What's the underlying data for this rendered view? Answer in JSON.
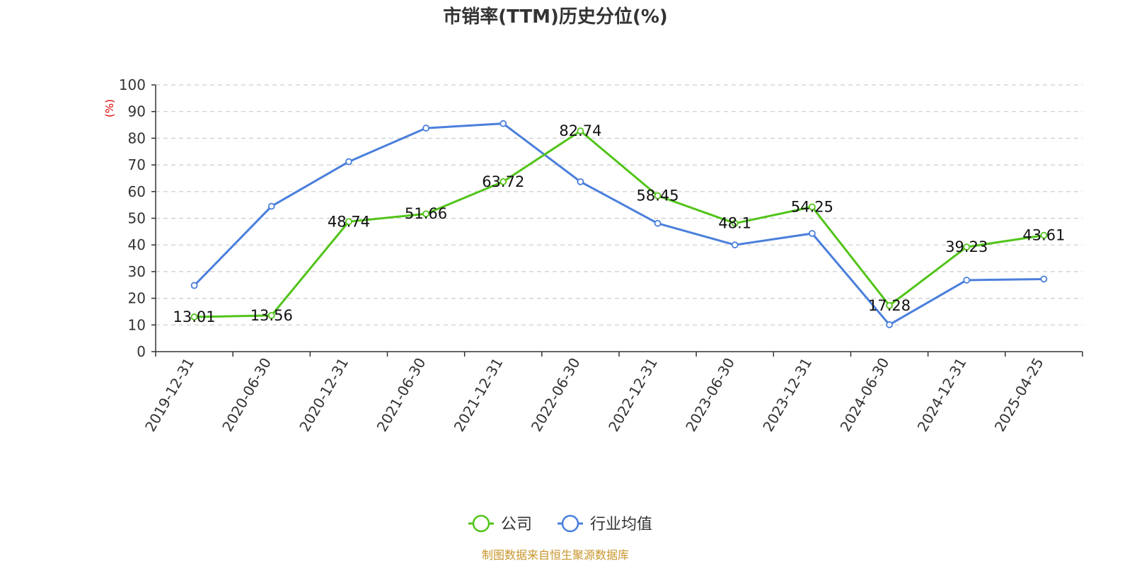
{
  "chart_data": {
    "type": "line",
    "title": "市销率(TTM)历史分位(%)",
    "ylabel": "(%)",
    "xlabel": "",
    "ylim": [
      0,
      100
    ],
    "yticks": [
      0,
      10,
      20,
      30,
      40,
      50,
      60,
      70,
      80,
      90,
      100
    ],
    "categories": [
      "2019-12-31",
      "2020-06-30",
      "2020-12-31",
      "2021-06-30",
      "2021-12-31",
      "2022-06-30",
      "2022-12-31",
      "2023-06-30",
      "2023-12-31",
      "2024-06-30",
      "2024-12-31",
      "2025-04-25"
    ],
    "series": [
      {
        "name": "公司",
        "color": "#52c41a",
        "values": [
          13.01,
          13.56,
          48.74,
          51.66,
          63.72,
          82.74,
          58.45,
          48.1,
          54.25,
          17.28,
          39.23,
          43.61
        ],
        "labels": [
          "13.01",
          "13.56",
          "48.74",
          "51.66",
          "63.72",
          "82.74",
          "58.45",
          "48.1",
          "54.25",
          "17.28",
          "39.23",
          "43.61"
        ]
      },
      {
        "name": "行业均值",
        "color": "#4a7fdc",
        "values": [
          24.8,
          54.5,
          71.2,
          83.8,
          85.5,
          63.7,
          48.1,
          40.0,
          44.3,
          10.1,
          26.8,
          27.2
        ]
      }
    ],
    "grid": true,
    "legend_position": "bottom-center",
    "unit_color": "#e00000",
    "source": "制图数据来自恒生聚源数据库",
    "source_color": "#c8962e"
  }
}
